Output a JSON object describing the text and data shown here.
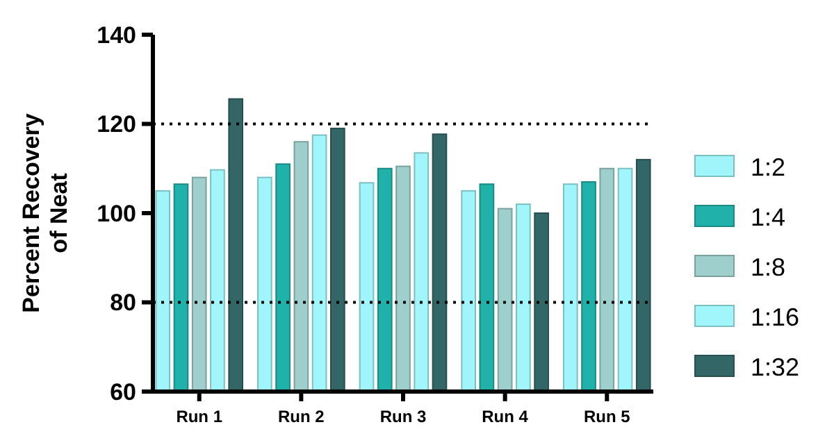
{
  "chart_data": {
    "type": "bar",
    "ylabel": "Percent Recovery\nof Neat",
    "categories": [
      "Run 1",
      "Run 2",
      "Run 3",
      "Run 4",
      "Run 5"
    ],
    "series": [
      {
        "name": "1:2",
        "color": "#9ff5fa",
        "values": [
          105,
          108,
          106.8,
          105,
          106.5
        ]
      },
      {
        "name": "1:4",
        "color": "#20b2aa",
        "values": [
          106.5,
          111,
          110,
          106.5,
          107
        ]
      },
      {
        "name": "1:8",
        "color": "#9ecfcc",
        "values": [
          108,
          116,
          110.5,
          101,
          110
        ]
      },
      {
        "name": "1:16",
        "color": "#a0f6fb",
        "values": [
          109.7,
          117.5,
          113.5,
          102,
          110
        ]
      },
      {
        "name": "1:32",
        "color": "#336666",
        "values": [
          125.6,
          119,
          117.7,
          100,
          112
        ]
      }
    ],
    "ylim": [
      60,
      140
    ],
    "yticks": [
      60,
      80,
      100,
      120,
      140
    ],
    "ref_lines": [
      {
        "axis": "y",
        "value": 120,
        "line_style": "dotted"
      },
      {
        "axis": "y",
        "value": 80,
        "line_style": "dotted"
      }
    ],
    "legend": "right"
  }
}
